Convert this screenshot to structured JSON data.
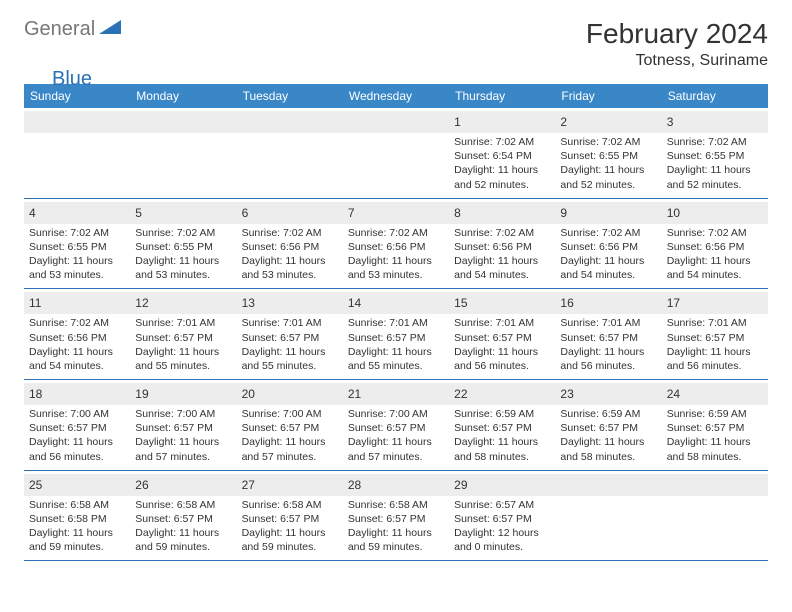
{
  "logo": {
    "text1": "General",
    "text2": "Blue"
  },
  "title": "February 2024",
  "location": "Totness, Suriname",
  "colors": {
    "header_bg": "#3a87c8",
    "header_text": "#ffffff",
    "daynum_bg": "#ededed",
    "border": "#2a72b5",
    "logo_gray": "#777777",
    "logo_blue": "#2a72b5"
  },
  "day_headers": [
    "Sunday",
    "Monday",
    "Tuesday",
    "Wednesday",
    "Thursday",
    "Friday",
    "Saturday"
  ],
  "weeks": [
    [
      null,
      null,
      null,
      null,
      {
        "n": "1",
        "sr": "7:02 AM",
        "ss": "6:54 PM",
        "dl": "11 hours and 52 minutes."
      },
      {
        "n": "2",
        "sr": "7:02 AM",
        "ss": "6:55 PM",
        "dl": "11 hours and 52 minutes."
      },
      {
        "n": "3",
        "sr": "7:02 AM",
        "ss": "6:55 PM",
        "dl": "11 hours and 52 minutes."
      }
    ],
    [
      {
        "n": "4",
        "sr": "7:02 AM",
        "ss": "6:55 PM",
        "dl": "11 hours and 53 minutes."
      },
      {
        "n": "5",
        "sr": "7:02 AM",
        "ss": "6:55 PM",
        "dl": "11 hours and 53 minutes."
      },
      {
        "n": "6",
        "sr": "7:02 AM",
        "ss": "6:56 PM",
        "dl": "11 hours and 53 minutes."
      },
      {
        "n": "7",
        "sr": "7:02 AM",
        "ss": "6:56 PM",
        "dl": "11 hours and 53 minutes."
      },
      {
        "n": "8",
        "sr": "7:02 AM",
        "ss": "6:56 PM",
        "dl": "11 hours and 54 minutes."
      },
      {
        "n": "9",
        "sr": "7:02 AM",
        "ss": "6:56 PM",
        "dl": "11 hours and 54 minutes."
      },
      {
        "n": "10",
        "sr": "7:02 AM",
        "ss": "6:56 PM",
        "dl": "11 hours and 54 minutes."
      }
    ],
    [
      {
        "n": "11",
        "sr": "7:02 AM",
        "ss": "6:56 PM",
        "dl": "11 hours and 54 minutes."
      },
      {
        "n": "12",
        "sr": "7:01 AM",
        "ss": "6:57 PM",
        "dl": "11 hours and 55 minutes."
      },
      {
        "n": "13",
        "sr": "7:01 AM",
        "ss": "6:57 PM",
        "dl": "11 hours and 55 minutes."
      },
      {
        "n": "14",
        "sr": "7:01 AM",
        "ss": "6:57 PM",
        "dl": "11 hours and 55 minutes."
      },
      {
        "n": "15",
        "sr": "7:01 AM",
        "ss": "6:57 PM",
        "dl": "11 hours and 56 minutes."
      },
      {
        "n": "16",
        "sr": "7:01 AM",
        "ss": "6:57 PM",
        "dl": "11 hours and 56 minutes."
      },
      {
        "n": "17",
        "sr": "7:01 AM",
        "ss": "6:57 PM",
        "dl": "11 hours and 56 minutes."
      }
    ],
    [
      {
        "n": "18",
        "sr": "7:00 AM",
        "ss": "6:57 PM",
        "dl": "11 hours and 56 minutes."
      },
      {
        "n": "19",
        "sr": "7:00 AM",
        "ss": "6:57 PM",
        "dl": "11 hours and 57 minutes."
      },
      {
        "n": "20",
        "sr": "7:00 AM",
        "ss": "6:57 PM",
        "dl": "11 hours and 57 minutes."
      },
      {
        "n": "21",
        "sr": "7:00 AM",
        "ss": "6:57 PM",
        "dl": "11 hours and 57 minutes."
      },
      {
        "n": "22",
        "sr": "6:59 AM",
        "ss": "6:57 PM",
        "dl": "11 hours and 58 minutes."
      },
      {
        "n": "23",
        "sr": "6:59 AM",
        "ss": "6:57 PM",
        "dl": "11 hours and 58 minutes."
      },
      {
        "n": "24",
        "sr": "6:59 AM",
        "ss": "6:57 PM",
        "dl": "11 hours and 58 minutes."
      }
    ],
    [
      {
        "n": "25",
        "sr": "6:58 AM",
        "ss": "6:58 PM",
        "dl": "11 hours and 59 minutes."
      },
      {
        "n": "26",
        "sr": "6:58 AM",
        "ss": "6:57 PM",
        "dl": "11 hours and 59 minutes."
      },
      {
        "n": "27",
        "sr": "6:58 AM",
        "ss": "6:57 PM",
        "dl": "11 hours and 59 minutes."
      },
      {
        "n": "28",
        "sr": "6:58 AM",
        "ss": "6:57 PM",
        "dl": "11 hours and 59 minutes."
      },
      {
        "n": "29",
        "sr": "6:57 AM",
        "ss": "6:57 PM",
        "dl": "12 hours and 0 minutes."
      },
      null,
      null
    ]
  ],
  "labels": {
    "sunrise": "Sunrise:",
    "sunset": "Sunset:",
    "daylight": "Daylight:"
  }
}
